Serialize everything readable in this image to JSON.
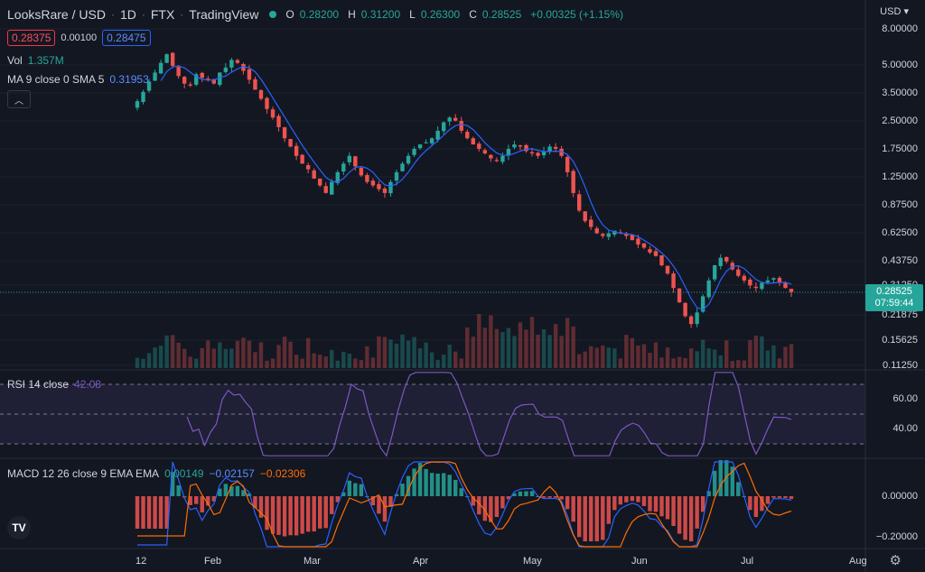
{
  "header": {
    "symbol": "LooksRare / USD",
    "interval": "1D",
    "exchange": "FTX",
    "provider": "TradingView",
    "open_label": "O",
    "open_value": "0.28200",
    "high_label": "H",
    "high_value": "0.31200",
    "low_label": "L",
    "low_value": "0.26300",
    "close_label": "C",
    "close_value": "0.28525",
    "change": "+0.00325 (+1.15%)",
    "bid": "0.28375",
    "spread": "0.00100",
    "ask": "0.28475",
    "currency": "USD"
  },
  "indicators": {
    "vol_label": "Vol",
    "vol_value": "1.357M",
    "ma_label": "MA 9 close 0 SMA 5",
    "ma_value": "0.31953",
    "rsi_label": "RSI 14 close",
    "rsi_value": "42.08",
    "macd_label": "MACD 12 26 close 9 EMA EMA",
    "macd_hist": "0.00149",
    "macd_line": "−0.02157",
    "macd_signal": "−0.02306"
  },
  "price_scale": [
    "8.00000",
    "5.00000",
    "3.50000",
    "2.50000",
    "1.75000",
    "1.25000",
    "0.87500",
    "0.62500",
    "0.43750",
    "0.31250",
    "0.21875",
    "0.15625",
    "0.11250"
  ],
  "current_price": "0.28525",
  "countdown": "07:59:44",
  "rsi_scale": [
    "60.00",
    "40.00"
  ],
  "macd_scale": [
    "0.00000",
    "−0.20000"
  ],
  "time_axis": [
    "12",
    "Feb",
    "Mar",
    "Apr",
    "May",
    "Jun",
    "Jul",
    "Aug"
  ],
  "colors": {
    "up": "#26a69a",
    "down": "#ef5350",
    "ma": "#2962ff",
    "rsi": "#7e57c2",
    "signal": "#ff6d00",
    "bg": "#131722"
  },
  "chart_data": {
    "type": "candlestick",
    "close_series": [
      3.2,
      3.6,
      4.1,
      4.6,
      5.2,
      5.8,
      5.0,
      4.4,
      4.0,
      3.9,
      4.5,
      4.3,
      4.2,
      4.0,
      4.6,
      4.9,
      5.4,
      5.2,
      4.7,
      4.2,
      3.7,
      3.3,
      2.9,
      2.6,
      2.3,
      2.0,
      1.8,
      1.6,
      1.45,
      1.35,
      1.2,
      1.1,
      1.0,
      1.15,
      1.3,
      1.45,
      1.6,
      1.4,
      1.25,
      1.15,
      1.1,
      1.05,
      1.0,
      1.15,
      1.3,
      1.45,
      1.6,
      1.75,
      1.85,
      1.9,
      2.0,
      2.2,
      2.45,
      2.6,
      2.5,
      2.2,
      2.0,
      1.85,
      1.75,
      1.65,
      1.55,
      1.5,
      1.6,
      1.75,
      1.85,
      1.8,
      1.7,
      1.65,
      1.6,
      1.7,
      1.8,
      1.75,
      1.6,
      1.3,
      1.0,
      0.8,
      0.7,
      0.65,
      0.6,
      0.58,
      0.6,
      0.62,
      0.6,
      0.58,
      0.55,
      0.52,
      0.5,
      0.47,
      0.45,
      0.4,
      0.36,
      0.3,
      0.25,
      0.21,
      0.19,
      0.22,
      0.27,
      0.33,
      0.4,
      0.44,
      0.42,
      0.38,
      0.35,
      0.33,
      0.31,
      0.3,
      0.32,
      0.33,
      0.34,
      0.32,
      0.3,
      0.285
    ]
  }
}
